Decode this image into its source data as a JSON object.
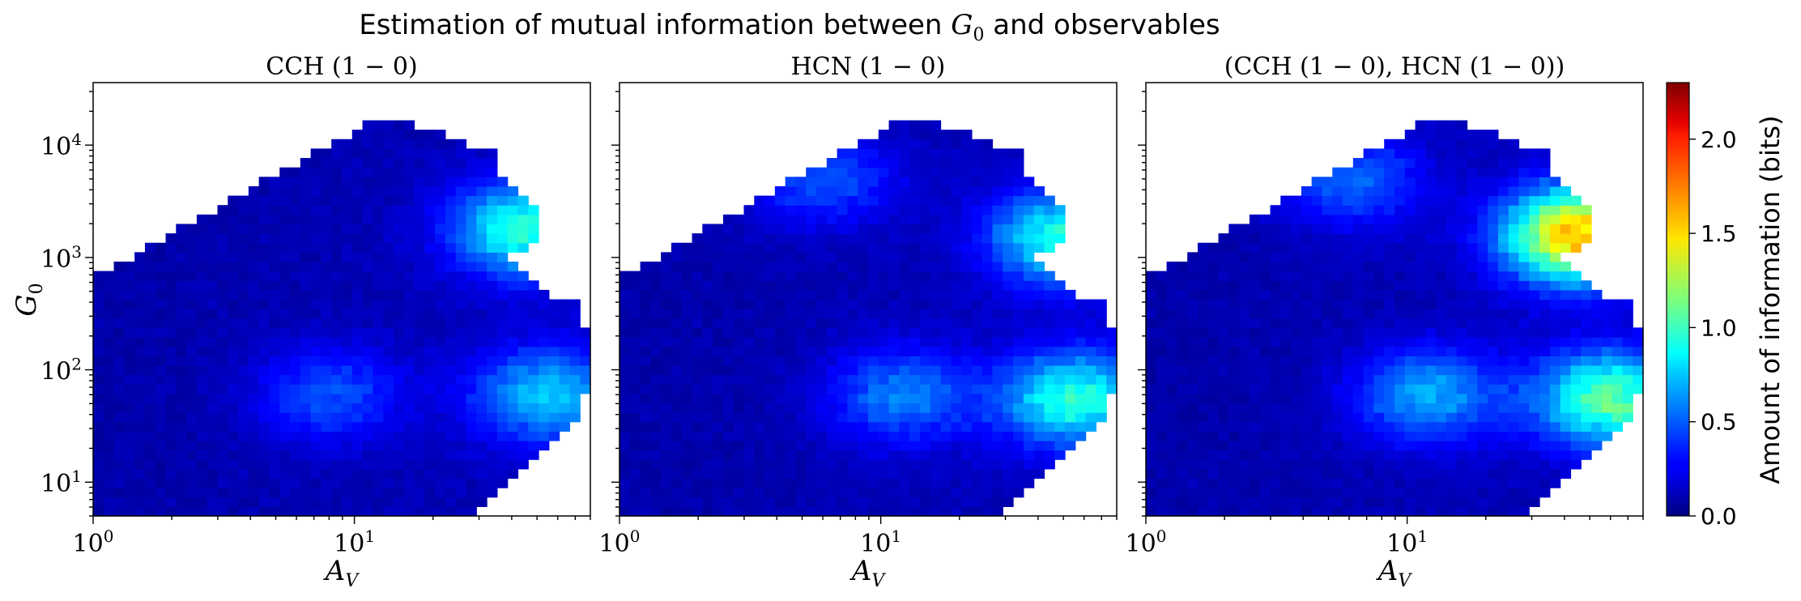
{
  "figure": {
    "title_prefix": "Estimation of mutual information between ",
    "title_symbol": "G",
    "title_subscript": "0",
    "title_suffix": " and observables"
  },
  "colorbar": {
    "label": "Amount of information (bits)",
    "range": [
      0,
      2.3
    ],
    "ticks": [
      "0.0",
      "0.5",
      "1.0",
      "1.5",
      "2.0"
    ],
    "tick_values": [
      0,
      0.5,
      1.0,
      1.5,
      2.0
    ],
    "colormap": "jet"
  },
  "chart_data": [
    {
      "type": "heatmap",
      "title": "CCH (1 − 0)",
      "xlabel_symbol": "A",
      "xlabel_subscript": "V",
      "ylabel_symbol": "G",
      "ylabel_subscript": "0",
      "x_scale": "log",
      "y_scale": "log",
      "xlim": [
        1,
        80
      ],
      "ylim": [
        5,
        36000
      ],
      "x_ticks": [
        {
          "base": "10",
          "exp": "0",
          "value": 1
        },
        {
          "base": "10",
          "exp": "1",
          "value": 10
        }
      ],
      "y_ticks": [
        {
          "base": "10",
          "exp": "1",
          "value": 10
        },
        {
          "base": "10",
          "exp": "2",
          "value": 100
        },
        {
          "base": "10",
          "exp": "3",
          "value": 1000
        },
        {
          "base": "10",
          "exp": "4",
          "value": 10000
        }
      ],
      "show_y_tick_labels": true,
      "hotspots": [
        {
          "av": 45,
          "g0": 1800,
          "mi": 0.82
        },
        {
          "av": 55,
          "g0": 60,
          "mi": 0.6
        },
        {
          "av": 8,
          "g0": 60,
          "mi": 0.35
        }
      ]
    },
    {
      "type": "heatmap",
      "title": "HCN (1 − 0)",
      "xlabel_symbol": "A",
      "xlabel_subscript": "V",
      "x_scale": "log",
      "y_scale": "log",
      "xlim": [
        1,
        80
      ],
      "ylim": [
        5,
        36000
      ],
      "x_ticks": [
        {
          "base": "10",
          "exp": "0",
          "value": 1
        },
        {
          "base": "10",
          "exp": "1",
          "value": 10
        }
      ],
      "show_y_tick_labels": false,
      "hotspots": [
        {
          "av": 50,
          "g0": 1500,
          "mi": 0.8
        },
        {
          "av": 55,
          "g0": 55,
          "mi": 0.82
        },
        {
          "av": 12,
          "g0": 60,
          "mi": 0.45
        },
        {
          "av": 6,
          "g0": 5000,
          "mi": 0.35
        }
      ]
    },
    {
      "type": "heatmap",
      "title": "(CCH (1 − 0), HCN (1 − 0))",
      "xlabel_symbol": "A",
      "xlabel_subscript": "V",
      "x_scale": "log",
      "y_scale": "log",
      "xlim": [
        1,
        80
      ],
      "ylim": [
        5,
        36000
      ],
      "x_ticks": [
        {
          "base": "10",
          "exp": "0",
          "value": 1
        },
        {
          "base": "10",
          "exp": "1",
          "value": 10
        }
      ],
      "show_y_tick_labels": false,
      "hotspots": [
        {
          "av": 45,
          "g0": 1600,
          "mi": 1.45
        },
        {
          "av": 60,
          "g0": 55,
          "mi": 0.95
        },
        {
          "av": 12,
          "g0": 60,
          "mi": 0.55
        },
        {
          "av": 6,
          "g0": 5000,
          "mi": 0.4
        }
      ]
    }
  ]
}
